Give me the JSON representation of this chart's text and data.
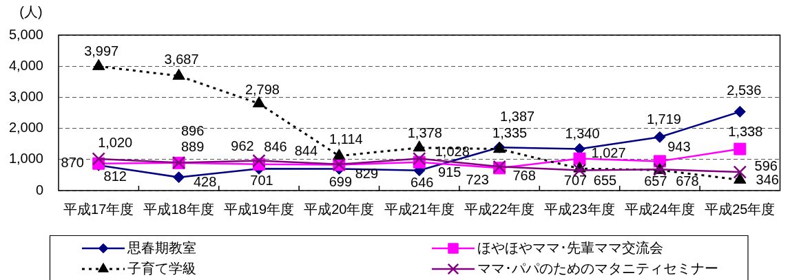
{
  "chart_data": {
    "type": "line",
    "ylabel": "(人)",
    "categories": [
      "平成17年度",
      "平成18年度",
      "平成19年度",
      "平成20年度",
      "平成21年度",
      "平成22年度",
      "平成23年度",
      "平成24年度",
      "平成25年度"
    ],
    "series": [
      {
        "name": "思春期教室",
        "color": "#000080",
        "marker": "diamond",
        "line_style": "solid",
        "values": [
          812,
          428,
          701,
          699,
          646,
          1387,
          1340,
          1719,
          2536
        ],
        "value_labels": [
          "812",
          "428",
          "701",
          "699",
          "646",
          "1,387",
          "1,340",
          "1,719",
          "2,536"
        ]
      },
      {
        "name": "ほやほやママ･先輩ママ交流会",
        "color": "#ff00ff",
        "marker": "square",
        "line_style": "solid",
        "values": [
          870,
          889,
          846,
          829,
          915,
          723,
          1027,
          943,
          1338
        ],
        "value_labels": [
          "870",
          "889",
          "846",
          "829",
          "915",
          "723",
          "1,027",
          "943",
          "1,338"
        ]
      },
      {
        "name": "子育て学級",
        "color": "#000000",
        "marker": "triangle",
        "line_style": "dotted",
        "values": [
          3997,
          3687,
          2798,
          1114,
          1378,
          1335,
          707,
          657,
          346
        ],
        "value_labels": [
          "3,997",
          "3,687",
          "2,798",
          "1,114",
          "1,378",
          "1,335",
          "707",
          "657",
          "346"
        ]
      },
      {
        "name": "ママ･パパのためのマタニティセミナー",
        "color": "#800080",
        "marker": "cross",
        "line_style": "solid",
        "values": [
          1020,
          896,
          962,
          844,
          1028,
          768,
          655,
          678,
          596
        ],
        "value_labels": [
          "1,020",
          "896",
          "962",
          "844",
          "1,028",
          "768",
          "655",
          "678",
          "596"
        ]
      }
    ],
    "ylim": [
      0,
      5000
    ],
    "yticks": [
      0,
      {
        "value": 1000,
        "label": "1,000"
      },
      {
        "value": 2000,
        "label": "2,000"
      },
      {
        "value": 3000,
        "label": "3,000"
      },
      {
        "value": 4000,
        "label": "4,000"
      },
      {
        "value": 5000,
        "label": "5,000"
      }
    ],
    "grid": "y",
    "legend": "bottom"
  }
}
